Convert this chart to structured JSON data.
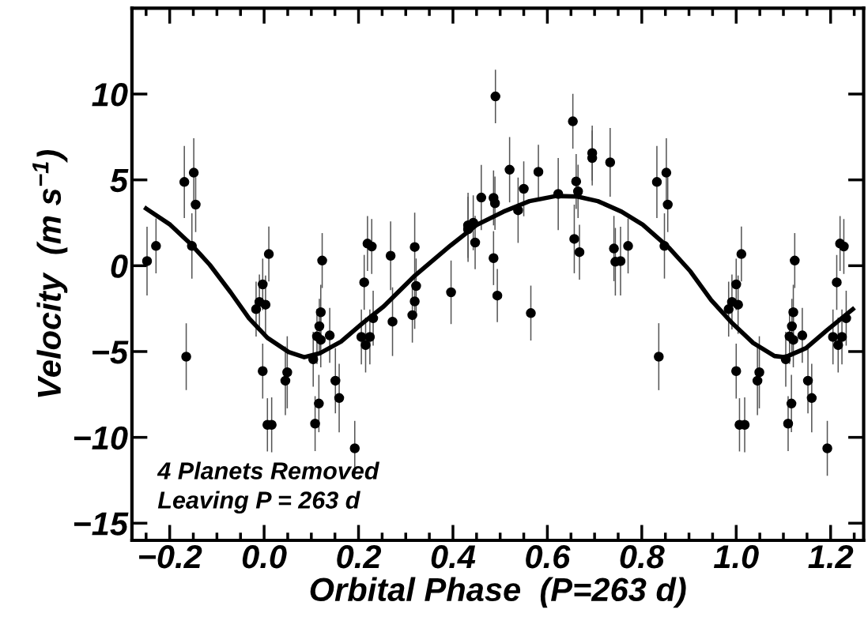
{
  "chart_data": {
    "type": "scatter",
    "xlabel": "Orbital Phase  (P=263 d)",
    "ylabel": "Velocity  (m s$^{−1}$)",
    "xlim": [
      -0.28,
      1.27
    ],
    "ylim": [
      -16,
      15
    ],
    "xticks": [
      {
        "value": -0.2,
        "label": "−0.2"
      },
      {
        "value": 0.0,
        "label": "0.0"
      },
      {
        "value": 0.2,
        "label": "0.2"
      },
      {
        "value": 0.4,
        "label": "0.4"
      },
      {
        "value": 0.6,
        "label": "0.6"
      },
      {
        "value": 0.8,
        "label": "0.8"
      },
      {
        "value": 1.0,
        "label": "1.0"
      },
      {
        "value": 1.2,
        "label": "1.2"
      }
    ],
    "yticks": [
      {
        "value": -15,
        "label": "−15"
      },
      {
        "value": -10,
        "label": "−10"
      },
      {
        "value": -5,
        "label": "−5"
      },
      0,
      5,
      10
    ],
    "grid": false,
    "legend": false,
    "annotations": [
      "4 Planets Removed",
      "Leaving P = 263 d"
    ],
    "series": [
      {
        "color": "#000000",
        "marker": "circle",
        "x": [
          -0.248,
          -0.229,
          -0.169,
          -0.149,
          -0.145,
          -0.153,
          -0.165,
          -0.017,
          -0.01,
          -0.003,
          -0.003,
          1.004,
          1.011,
          1.007,
          1.018,
          1.045,
          1.049,
          1.105,
          1.11,
          1.117,
          1.113,
          1.118,
          1.121,
          1.121,
          1.124,
          1.14,
          1.152,
          1.16,
          1.193,
          1.213,
          1.22,
          1.228,
          1.205,
          1.216,
          1.224,
          1.233
        ],
        "values": [
          0.27,
          1.15,
          4.88,
          5.42,
          3.56,
          1.15,
          -5.3,
          -2.53,
          -2.11,
          -1.09,
          -6.14,
          -2.27,
          0.68,
          -9.27,
          -9.27,
          -6.7,
          -6.21,
          -5.45,
          -9.2,
          -8.03,
          -4.12,
          -3.53,
          -2.71,
          -4.32,
          0.3,
          -4.06,
          -6.7,
          -7.71,
          -10.64,
          -0.97,
          1.29,
          1.12,
          -4.15,
          -4.62,
          -4.15,
          -3.06
        ],
        "errors": [
          2.0,
          1.6,
          2.1,
          2.0,
          1.6,
          1.9,
          1.95,
          1.6,
          1.6,
          1.5,
          1.6,
          1.7,
          1.6,
          1.55,
          1.6,
          2.0,
          2.1,
          1.6,
          1.6,
          1.67,
          1.6,
          1.6,
          1.6,
          1.6,
          1.6,
          1.6,
          1.9,
          2.0,
          1.6,
          1.6,
          1.6,
          1.6,
          1.6,
          1.6,
          1.6,
          1.6
        ]
      },
      {
        "color": "#000000",
        "marker": "circle",
        "x": [
          0.003,
          0.01,
          0.007,
          0.016,
          0.045,
          0.049,
          0.104,
          0.108,
          0.116,
          0.112,
          0.117,
          0.12,
          0.12,
          0.123,
          0.139,
          0.151,
          0.159,
          0.192,
          0.212,
          0.219,
          0.228,
          0.206,
          0.215,
          0.224,
          0.231,
          0.268,
          0.272,
          0.319,
          0.322,
          0.319,
          0.314,
          0.396,
          0.432,
          0.432,
          0.443,
          0.447,
          0.46,
          0.486,
          0.489,
          0.486,
          0.494,
          0.49,
          0.52,
          0.538,
          0.55,
          0.565,
          0.581,
          0.623,
          0.654,
          0.661,
          0.665,
          0.657,
          0.668,
          0.695,
          0.695,
          0.733,
          0.741,
          0.744,
          0.755,
          0.771,
          0.832,
          0.852,
          0.855,
          0.848,
          0.836,
          0.984,
          0.991,
          1.0,
          1.0
        ],
        "values": [
          -2.27,
          0.68,
          -9.27,
          -9.27,
          -6.7,
          -6.21,
          -5.45,
          -9.2,
          -8.03,
          -4.12,
          -3.53,
          -2.71,
          -4.32,
          0.3,
          -4.06,
          -6.7,
          -7.71,
          -10.64,
          -0.97,
          1.29,
          1.12,
          -4.15,
          -4.62,
          -4.15,
          -3.06,
          0.58,
          -3.26,
          1.09,
          -1.18,
          -2.08,
          -2.88,
          -1.55,
          2.35,
          2.12,
          2.5,
          1.35,
          3.97,
          3.95,
          3.64,
          0.44,
          -1.74,
          9.86,
          5.59,
          3.23,
          4.48,
          -2.76,
          5.47,
          4.18,
          8.41,
          4.91,
          4.33,
          1.56,
          0.79,
          6.56,
          6.27,
          6.02,
          1.0,
          0.23,
          0.27,
          1.15,
          4.88,
          5.42,
          3.56,
          1.15,
          -5.3,
          -2.53,
          -2.11,
          -1.09,
          -6.14
        ],
        "errors": [
          1.7,
          1.6,
          1.55,
          1.6,
          2.0,
          2.1,
          1.6,
          1.6,
          1.67,
          1.6,
          1.6,
          1.6,
          1.6,
          1.6,
          1.6,
          1.9,
          2.0,
          1.6,
          1.6,
          1.6,
          1.6,
          1.6,
          1.6,
          1.6,
          1.6,
          2.0,
          2.0,
          2.0,
          1.6,
          1.6,
          1.6,
          1.85,
          1.9,
          1.9,
          1.6,
          1.55,
          1.9,
          1.6,
          1.55,
          1.57,
          1.55,
          1.56,
          1.9,
          1.9,
          1.6,
          1.6,
          1.57,
          2.1,
          1.6,
          1.6,
          1.55,
          2.0,
          1.6,
          1.6,
          1.6,
          2.0,
          1.9,
          1.97,
          2.0,
          1.6,
          2.1,
          2.0,
          1.6,
          1.9,
          1.95,
          1.6,
          1.6,
          1.5,
          1.6
        ]
      },
      {
        "type": "line",
        "color": "#000000",
        "marker": "none",
        "line_style": "solid",
        "x": [
          -0.25,
          -0.199,
          -0.153,
          -0.115,
          -0.071,
          -0.032,
          0.007,
          0.052,
          0.085,
          0.119,
          0.163,
          0.208,
          0.253,
          0.317,
          0.395,
          0.451,
          0.507,
          0.562,
          0.618,
          0.663,
          0.707,
          0.757,
          0.802,
          0.858,
          0.903,
          0.947,
          0.992,
          1.036,
          1.081,
          1.104,
          1.148,
          1.193,
          1.247
        ],
        "values": [
          3.33,
          2.39,
          1.2,
          0.05,
          -1.55,
          -3.06,
          -4.2,
          -5.03,
          -5.33,
          -5.09,
          -4.42,
          -3.36,
          -2.38,
          -0.64,
          1.18,
          2.39,
          3.15,
          3.76,
          4.06,
          4.03,
          3.76,
          3.15,
          2.39,
          1.03,
          -0.33,
          -2.0,
          -3.36,
          -4.5,
          -5.26,
          -5.33,
          -4.8,
          -3.74,
          -2.53
        ]
      }
    ]
  }
}
